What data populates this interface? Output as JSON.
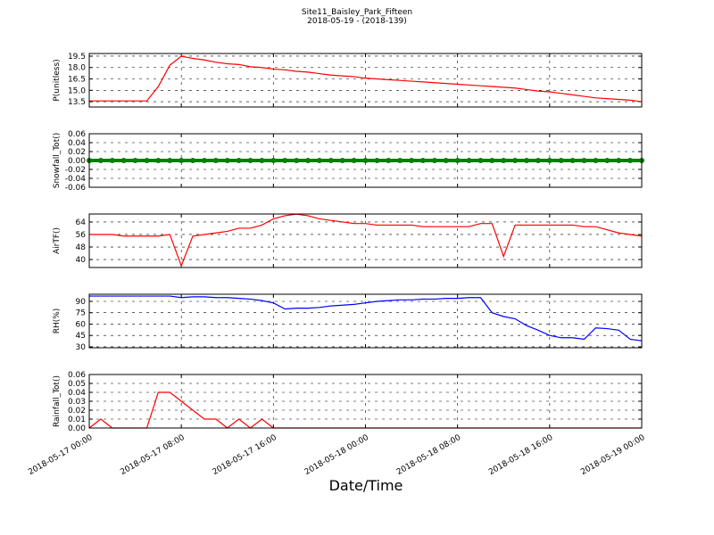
{
  "chart_data": {
    "type": "line",
    "title": "Site11_Baisley_Park_Fifteen",
    "subtitle": "2018-05-19 - (2018-139)",
    "xlabel": "Date/Time",
    "grid": true,
    "x": [
      "2018-05-17 00:00",
      "2018-05-17 01:00",
      "2018-05-17 02:00",
      "2018-05-17 03:00",
      "2018-05-17 04:00",
      "2018-05-17 05:00",
      "2018-05-17 06:00",
      "2018-05-17 07:00",
      "2018-05-17 08:00",
      "2018-05-17 09:00",
      "2018-05-17 10:00",
      "2018-05-17 11:00",
      "2018-05-17 12:00",
      "2018-05-17 13:00",
      "2018-05-17 14:00",
      "2018-05-17 15:00",
      "2018-05-17 16:00",
      "2018-05-17 17:00",
      "2018-05-17 18:00",
      "2018-05-17 19:00",
      "2018-05-17 20:00",
      "2018-05-17 21:00",
      "2018-05-17 22:00",
      "2018-05-17 23:00",
      "2018-05-18 00:00",
      "2018-05-18 01:00",
      "2018-05-18 02:00",
      "2018-05-18 03:00",
      "2018-05-18 04:00",
      "2018-05-18 05:00",
      "2018-05-18 06:00",
      "2018-05-18 07:00",
      "2018-05-18 08:00",
      "2018-05-18 09:00",
      "2018-05-18 10:00",
      "2018-05-18 11:00",
      "2018-05-18 12:00",
      "2018-05-18 13:00",
      "2018-05-18 14:00",
      "2018-05-18 15:00",
      "2018-05-18 16:00",
      "2018-05-18 17:00",
      "2018-05-18 18:00",
      "2018-05-18 19:00",
      "2018-05-18 20:00",
      "2018-05-18 21:00",
      "2018-05-18 22:00",
      "2018-05-18 23:00",
      "2018-05-19 00:00"
    ],
    "xlim": [
      "2018-05-17 00:00",
      "2018-05-19 00:00"
    ],
    "xticks": [
      "2018-05-17 00:00",
      "2018-05-17 08:00",
      "2018-05-17 16:00",
      "2018-05-18 00:00",
      "2018-05-18 08:00",
      "2018-05-18 16:00",
      "2018-05-19 00:00"
    ],
    "panels": [
      {
        "type": "line",
        "ylabel": "P(unitless)",
        "color": "#ff0000",
        "values": [
          13.6,
          13.6,
          13.6,
          13.6,
          13.6,
          13.6,
          15.5,
          18.3,
          19.5,
          19.2,
          19.0,
          18.7,
          18.5,
          18.4,
          18.1,
          18.0,
          17.8,
          17.7,
          17.5,
          17.4,
          17.2,
          17.0,
          16.9,
          16.8,
          16.6,
          16.5,
          16.4,
          16.3,
          16.2,
          16.1,
          16.0,
          15.9,
          15.8,
          15.7,
          15.6,
          15.5,
          15.4,
          15.3,
          15.1,
          14.9,
          14.8,
          14.6,
          14.4,
          14.2,
          14.0,
          13.9,
          13.8,
          13.7,
          13.5
        ],
        "ylim": [
          12.8,
          19.85
        ],
        "yticks": [
          13.5,
          {
            "value": 15,
            "label": "15.0"
          },
          16.5,
          {
            "value": 18,
            "label": "18.0"
          },
          19.5
        ]
      },
      {
        "type": "scatter",
        "ylabel": "Snowfall_Tot()",
        "color": "#008000",
        "values": [
          0,
          0,
          0,
          0,
          0,
          0,
          0,
          0,
          0,
          0,
          0,
          0,
          0,
          0,
          0,
          0,
          0,
          0,
          0,
          0,
          0,
          0,
          0,
          0,
          0,
          0,
          0,
          0,
          0,
          0,
          0,
          0,
          0,
          0,
          0,
          0,
          0,
          0,
          0,
          0,
          0,
          0,
          0,
          0,
          0,
          0,
          0,
          0,
          0
        ],
        "ylim": [
          -0.06,
          0.06
        ],
        "yticks": [
          -0.06,
          -0.04,
          -0.02,
          {
            "value": 0,
            "label": "0.00"
          },
          0.02,
          0.04,
          0.06
        ]
      },
      {
        "type": "line",
        "ylabel": "AirTF()",
        "color": "#ff0000",
        "values": [
          56,
          56,
          56,
          55,
          55,
          55,
          55,
          56,
          36,
          55,
          56,
          57,
          58,
          60,
          60,
          62,
          66,
          68,
          69,
          68,
          66,
          65,
          64,
          63,
          63,
          62,
          62,
          62,
          62,
          61,
          61,
          61,
          61,
          61,
          63,
          63,
          42,
          62,
          62,
          62,
          62,
          62,
          62,
          61,
          61,
          59,
          57,
          56,
          55
        ],
        "ylim": [
          34.9,
          69.1
        ],
        "yticks": [
          40,
          48,
          56,
          64
        ]
      },
      {
        "type": "line",
        "ylabel": "RH(%)",
        "color": "#0000ff",
        "values": [
          97,
          97,
          97,
          97,
          97,
          97,
          97,
          97,
          95,
          96,
          96,
          95,
          95,
          94,
          93,
          91,
          88,
          80,
          81,
          81,
          82,
          84,
          85,
          86,
          88,
          90,
          91,
          92,
          92,
          93,
          93,
          94,
          94,
          95,
          95,
          75,
          70,
          67,
          58,
          52,
          45,
          42,
          42,
          40,
          55,
          54,
          52,
          40,
          38
        ],
        "ylim": [
          28.8,
          99.4
        ],
        "yticks": [
          30,
          45,
          60,
          75,
          90
        ]
      },
      {
        "type": "line",
        "ylabel": "Rainfall_Tot()",
        "color": "#ff0000",
        "values": [
          0,
          0.01,
          0,
          0,
          0,
          0,
          0.04,
          0.04,
          0.03,
          0.02,
          0.01,
          0.01,
          0,
          0.01,
          0,
          0.01,
          0,
          0,
          0,
          0,
          0,
          0,
          0,
          0,
          0,
          0,
          0,
          0,
          0,
          0,
          0,
          0,
          0,
          0,
          0,
          0,
          0,
          0,
          0,
          0,
          0,
          0,
          0,
          0,
          0,
          0,
          0,
          0,
          0
        ],
        "ylim": [
          0,
          0.06
        ],
        "yticks": [
          {
            "value": 0,
            "label": "0.00"
          },
          0.01,
          0.02,
          0.03,
          0.04,
          0.05,
          0.06
        ]
      }
    ]
  }
}
